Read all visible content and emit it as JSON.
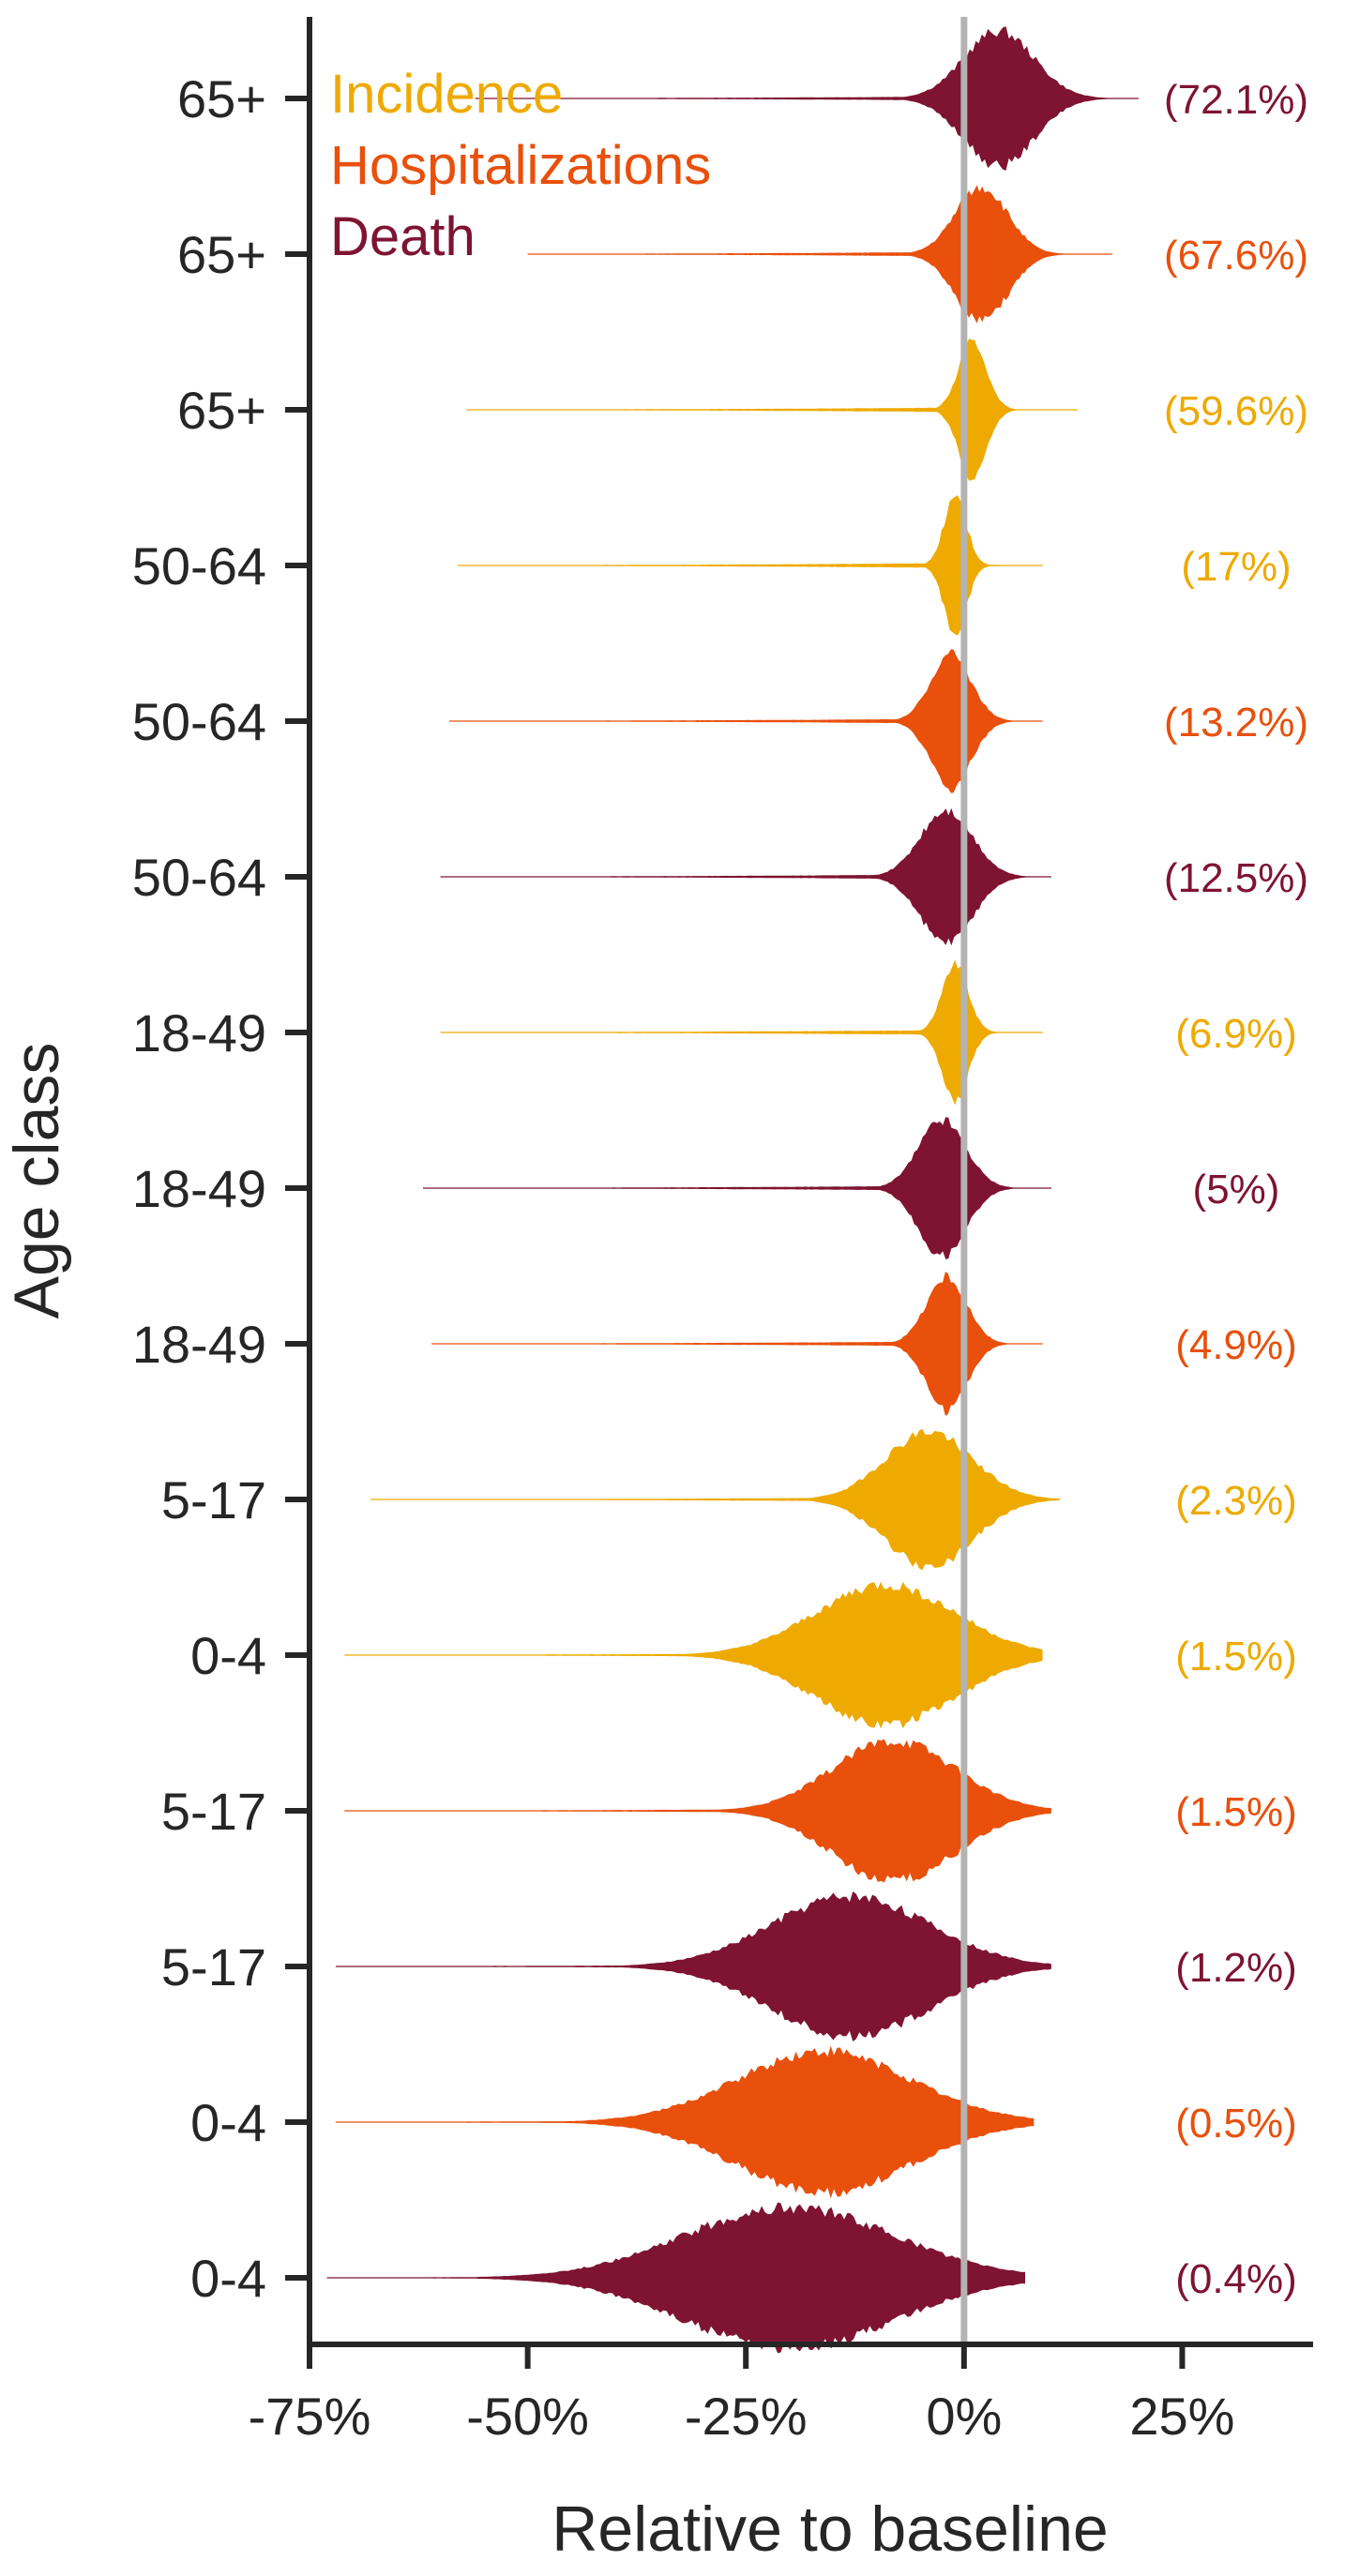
{
  "chart_data": {
    "type": "violin",
    "xlabel": "Relative to baseline",
    "ylabel": "Age class",
    "xlim": [
      -75,
      40
    ],
    "xticks": [
      -75,
      -50,
      -25,
      0,
      25
    ],
    "xtick_labels": [
      "-75%",
      "-50%",
      "-25%",
      "0%",
      "25%"
    ],
    "reference_line": 0,
    "reference_line_color": "#b3b3b3",
    "grid": false,
    "legend_placement": "top-left",
    "legend": [
      {
        "name": "Incidence",
        "color": "#EEAA00"
      },
      {
        "name": "Hospitalizations",
        "color": "#E8500C"
      },
      {
        "name": "Death",
        "color": "#7E1431"
      }
    ],
    "rows": [
      {
        "age": "65+",
        "outcome": "Death",
        "color": "#7E1431",
        "median": 4,
        "spread": 4,
        "min": -56,
        "max": 20,
        "max_half": 72,
        "pct_label": "(72.1%)"
      },
      {
        "age": "65+",
        "outcome": "Hospitalizations",
        "color": "#E8500C",
        "median": 2,
        "spread": 3,
        "min": -50,
        "max": 17,
        "max_half": 72,
        "pct_label": "(67.6%)"
      },
      {
        "age": "65+",
        "outcome": "Incidence",
        "color": "#EEAA00",
        "median": 1,
        "spread": 1.6,
        "min": -57,
        "max": 13,
        "max_half": 72,
        "pct_label": "(59.6%)"
      },
      {
        "age": "50-64",
        "outcome": "Incidence",
        "color": "#EEAA00",
        "median": -1,
        "spread": 1.3,
        "min": -58,
        "max": 9,
        "max_half": 72,
        "pct_label": "(17%)"
      },
      {
        "age": "50-64",
        "outcome": "Hospitalizations",
        "color": "#E8500C",
        "median": -1.5,
        "spread": 2.3,
        "min": -59,
        "max": 9,
        "max_half": 72,
        "pct_label": "(13.2%)"
      },
      {
        "age": "50-64",
        "outcome": "Death",
        "color": "#7E1431",
        "median": -2,
        "spread": 3,
        "min": -60,
        "max": 10,
        "max_half": 72,
        "pct_label": "(12.5%)"
      },
      {
        "age": "18-49",
        "outcome": "Incidence",
        "color": "#EEAA00",
        "median": -1,
        "spread": 1.5,
        "min": -60,
        "max": 9,
        "max_half": 72,
        "pct_label": "(6.9%)"
      },
      {
        "age": "18-49",
        "outcome": "Death",
        "color": "#7E1431",
        "median": -2.5,
        "spread": 2.7,
        "min": -62,
        "max": 10,
        "max_half": 72,
        "pct_label": "(5%)"
      },
      {
        "age": "18-49",
        "outcome": "Hospitalizations",
        "color": "#E8500C",
        "median": -2,
        "spread": 2.3,
        "min": -61,
        "max": 9,
        "max_half": 72,
        "pct_label": "(4.9%)"
      },
      {
        "age": "5-17",
        "outcome": "Incidence",
        "color": "#EEAA00",
        "median": -4,
        "spread": 5,
        "min": -68,
        "max": 11,
        "max_half": 72,
        "pct_label": "(2.3%)"
      },
      {
        "age": "0-4",
        "outcome": "Incidence",
        "color": "#EEAA00",
        "median": -9,
        "spread": 8,
        "min": -71,
        "max": 9,
        "max_half": 75,
        "pct_label": "(1.5%)"
      },
      {
        "age": "5-17",
        "outcome": "Hospitalizations",
        "color": "#E8500C",
        "median": -8,
        "spread": 7,
        "min": -71,
        "max": 10,
        "max_half": 75,
        "pct_label": "(1.5%)"
      },
      {
        "age": "5-17",
        "outcome": "Death",
        "color": "#7E1431",
        "median": -13,
        "spread": 9,
        "min": -72,
        "max": 10,
        "max_half": 75,
        "pct_label": "(1.2%)"
      },
      {
        "age": "0-4",
        "outcome": "Hospitalizations",
        "color": "#E8500C",
        "median": -16,
        "spread": 10,
        "min": -72,
        "max": 8,
        "max_half": 75,
        "pct_label": "(0.5%)"
      },
      {
        "age": "0-4",
        "outcome": "Death",
        "color": "#7E1431",
        "median": -20,
        "spread": 12,
        "min": -73,
        "max": 7,
        "max_half": 75,
        "pct_label": "(0.4%)"
      }
    ]
  }
}
